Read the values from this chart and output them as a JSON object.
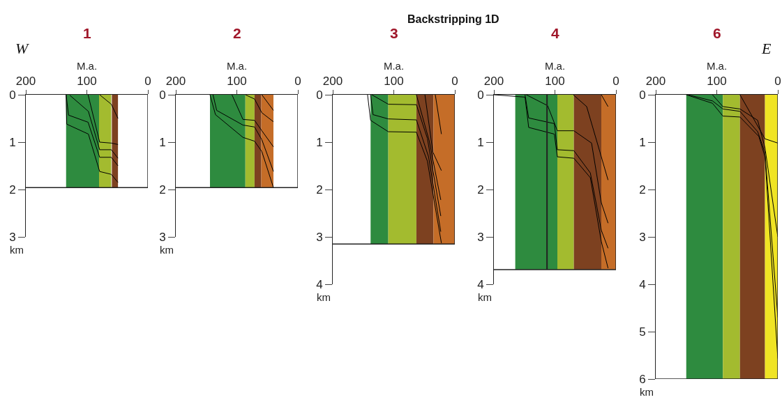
{
  "chart_data": [
    {
      "type": "line",
      "title": "1",
      "xlabel": "M.a.",
      "ylabel": "km",
      "annotations": [
        "Backstripping 1D",
        "W"
      ],
      "xlim": [
        200,
        0
      ],
      "xticks": [
        200,
        100,
        0
      ],
      "ylim": [
        3,
        0
      ],
      "yticks": [
        0,
        1,
        2,
        3
      ],
      "bands": [
        {
          "axis": "x",
          "from": 134,
          "to": 80,
          "color": "#2e8b3f"
        },
        {
          "axis": "x",
          "from": 80,
          "to": 60,
          "color": "#a3bb2f"
        },
        {
          "axis": "x",
          "from": 59,
          "to": 49,
          "color": "#7d4120"
        }
      ],
      "ref_lines": [
        {
          "axis": "y",
          "value": 1.96
        }
      ],
      "series": [
        {
          "color": "#000000",
          "x": [
            134,
            133,
            97.5,
            79,
            60,
            49
          ],
          "values": [
            0,
            0.62,
            0.83,
            1.62,
            1.68,
            1.85
          ]
        },
        {
          "color": "#000000",
          "x": [
            134,
            130,
            98,
            79,
            60,
            49
          ],
          "values": [
            0,
            0.43,
            0.58,
            1.32,
            1.32,
            1.5
          ]
        },
        {
          "color": "#000000",
          "x": [
            128,
            97.5,
            79,
            60,
            49
          ],
          "values": [
            0.01,
            0.35,
            1.16,
            1.16,
            1.34
          ]
        },
        {
          "color": "#000000",
          "x": [
            98,
            79,
            60,
            49
          ],
          "values": [
            0,
            1.0,
            1.02,
            1.05
          ]
        },
        {
          "color": "#000000",
          "x": [
            79,
            60,
            49
          ],
          "values": [
            0,
            0.2,
            0.5
          ]
        }
      ]
    },
    {
      "type": "line",
      "title": "2",
      "xlabel": "M.a.",
      "ylabel": "km",
      "xlim": [
        200,
        0
      ],
      "xticks": [
        200,
        100,
        0
      ],
      "ylim": [
        3,
        0
      ],
      "yticks": [
        0,
        1,
        2,
        3
      ],
      "bands": [
        {
          "axis": "x",
          "from": 144,
          "to": 86,
          "color": "#2e8b3f"
        },
        {
          "axis": "x",
          "from": 86,
          "to": 71,
          "color": "#a3bb2f"
        },
        {
          "axis": "x",
          "from": 71,
          "to": 60,
          "color": "#7d4120"
        },
        {
          "axis": "x",
          "from": 60,
          "to": 40,
          "color": "#c56d28"
        }
      ],
      "ref_lines": [
        {
          "axis": "y",
          "value": 1.96
        }
      ],
      "series": [
        {
          "color": "#000000",
          "x": [
            144,
            135,
            90,
            71,
            59,
            40
          ],
          "values": [
            0,
            0.42,
            0.9,
            0.98,
            1.2,
            1.96
          ]
        },
        {
          "color": "#000000",
          "x": [
            139,
            133,
            90,
            71,
            59,
            40
          ],
          "values": [
            0,
            0.33,
            0.64,
            0.68,
            0.95,
            1.62
          ]
        },
        {
          "color": "#000000",
          "x": [
            108,
            90,
            71,
            59,
            40
          ],
          "values": [
            0,
            0.52,
            0.54,
            0.76,
            1.1
          ]
        },
        {
          "color": "#000000",
          "x": [
            86,
            71,
            59,
            40
          ],
          "values": [
            0,
            0.09,
            0.38,
            0.57
          ]
        },
        {
          "color": "#000000",
          "x": [
            59,
            40
          ],
          "values": [
            0,
            0.33
          ]
        }
      ]
    },
    {
      "type": "line",
      "title": "3",
      "xlabel": "M.a.",
      "ylabel": "km",
      "xlim": [
        200,
        0
      ],
      "xticks": [
        200,
        100,
        0
      ],
      "ylim": [
        4,
        0
      ],
      "yticks": [
        0,
        1,
        2,
        3,
        4
      ],
      "bands": [
        {
          "axis": "x",
          "from": 138,
          "to": 109,
          "color": "#2e8b3f"
        },
        {
          "axis": "x",
          "from": 109,
          "to": 63,
          "color": "#a3bb2f"
        },
        {
          "axis": "x",
          "from": 63,
          "to": 35,
          "color": "#7d4120"
        },
        {
          "axis": "x",
          "from": 35,
          "to": 0,
          "color": "#c56d28"
        }
      ],
      "ref_lines": [
        {
          "axis": "y",
          "value": 3.15
        }
      ],
      "series": [
        {
          "color": "#000000",
          "x": [
            143,
            138,
            109,
            63,
            45,
            22
          ],
          "values": [
            0,
            0.54,
            0.78,
            0.79,
            1.4,
            3.13
          ]
        },
        {
          "color": "#000000",
          "x": [
            138,
            134,
            109,
            63,
            43,
            23
          ],
          "values": [
            0,
            0.42,
            0.51,
            0.53,
            1.31,
            2.89
          ]
        },
        {
          "color": "#000000",
          "x": [
            136,
            109,
            63,
            45,
            23
          ],
          "values": [
            0,
            0.2,
            0.21,
            0.92,
            2.56
          ]
        },
        {
          "color": "#000000",
          "x": [
            63,
            42,
            23
          ],
          "values": [
            0,
            0.97,
            2.22
          ]
        },
        {
          "color": "#000000",
          "x": [
            49,
            36,
            22
          ],
          "values": [
            0,
            1.21,
            1.6
          ]
        },
        {
          "color": "#000000",
          "x": [
            32,
            22
          ],
          "values": [
            0,
            0.83
          ]
        }
      ]
    },
    {
      "type": "line",
      "title": "4",
      "xlabel": "M.a.",
      "ylabel": "km",
      "xlim": [
        200,
        0
      ],
      "xticks": [
        200,
        100,
        0
      ],
      "ylim": [
        4,
        0
      ],
      "yticks": [
        0,
        1,
        2,
        3,
        4
      ],
      "bands": [
        {
          "axis": "x",
          "from": 165,
          "to": 96,
          "color": "#2e8b3f"
        },
        {
          "axis": "x",
          "from": 96,
          "to": 69,
          "color": "#a3bb2f"
        },
        {
          "axis": "x",
          "from": 69,
          "to": 24,
          "color": "#7d4120"
        },
        {
          "axis": "x",
          "from": 24,
          "to": 0,
          "color": "#c56d28"
        }
      ],
      "ref_lines": [
        {
          "axis": "y",
          "value": 3.69
        },
        {
          "axis": "x",
          "value": 113
        }
      ],
      "series": [
        {
          "color": "#000000",
          "x": [
            200,
            149,
            143,
            101,
            96,
            69,
            42,
            24,
            13
          ],
          "values": [
            0,
            0.05,
            0.69,
            0.83,
            1.31,
            1.34,
            1.75,
            3.1,
            3.66
          ]
        },
        {
          "color": "#000000",
          "x": [
            149,
            143,
            101,
            96,
            69,
            42,
            24,
            13
          ],
          "values": [
            0,
            0.49,
            0.61,
            1.16,
            1.18,
            1.65,
            2.86,
            3.24
          ]
        },
        {
          "color": "#000000",
          "x": [
            147,
            112,
            96,
            69,
            40,
            24,
            13
          ],
          "values": [
            0,
            0.23,
            0.76,
            0.76,
            1.02,
            2.28,
            2.71
          ]
        },
        {
          "color": "#000000",
          "x": [
            70,
            48,
            24,
            13
          ],
          "values": [
            0,
            0.25,
            1.31,
            1.8
          ]
        },
        {
          "color": "#000000",
          "x": [
            24,
            13
          ],
          "values": [
            0,
            0.25
          ]
        }
      ]
    },
    {
      "type": "line",
      "title": "6",
      "xlabel": "M.a.",
      "ylabel": "km",
      "annotations": [
        "E"
      ],
      "xlim": [
        200,
        0
      ],
      "xticks": [
        200,
        100,
        0
      ],
      "ylim": [
        6,
        0
      ],
      "yticks": [
        0,
        1,
        2,
        3,
        4,
        5,
        6
      ],
      "bands": [
        {
          "axis": "x",
          "from": 150,
          "to": 90,
          "color": "#2e8b3f"
        },
        {
          "axis": "x",
          "from": 90,
          "to": 62,
          "color": "#a3bb2f"
        },
        {
          "axis": "x",
          "from": 62,
          "to": 21,
          "color": "#7d4120"
        },
        {
          "axis": "x",
          "from": 21,
          "to": 0,
          "color": "#f0e424"
        }
      ],
      "ref_lines": [
        {
          "axis": "y",
          "value": 6
        }
      ],
      "series": [
        {
          "color": "#000000",
          "x": [
            150,
            107,
            90,
            62,
            31,
            21,
            0
          ],
          "values": [
            0,
            0.18,
            0.45,
            0.47,
            0.88,
            1.31,
            5.57
          ]
        },
        {
          "color": "#000000",
          "x": [
            147,
            107,
            90,
            62,
            33,
            21,
            0
          ],
          "values": [
            0,
            0.13,
            0.3,
            0.35,
            0.78,
            1.22,
            4.7
          ]
        },
        {
          "color": "#000000",
          "x": [
            107,
            90,
            62,
            33,
            21,
            0
          ],
          "values": [
            0,
            0.25,
            0.3,
            0.54,
            1.12,
            3.0
          ]
        },
        {
          "color": "#000000",
          "x": [
            62,
            21,
            0
          ],
          "values": [
            0,
            0.93,
            1.02
          ]
        }
      ]
    }
  ]
}
